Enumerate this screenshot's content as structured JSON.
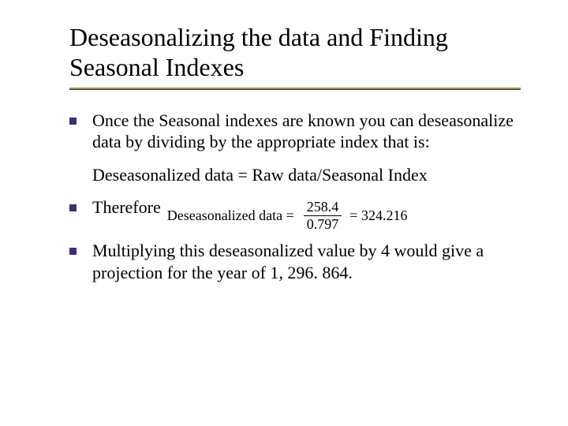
{
  "title": "Deseasonalizing the data and Finding Seasonal Indexes",
  "rule": {
    "top_color": "#9a9634",
    "bottom_color": "#40267a"
  },
  "bullet_color": "#3b2e7a",
  "font_family": "Times New Roman",
  "title_fontsize": 32,
  "body_fontsize": 22,
  "formula_fontsize": 18,
  "bullets": {
    "b1": "Once the Seasonal indexes are known you can deseasonalize data by dividing by the appropriate index that is:",
    "eq_line": "Deseasonalized data = Raw data/Seasonal Index",
    "b2_lead": "Therefore",
    "formula": {
      "lhs": "Deseasonalized data =",
      "numerator": "258.4",
      "denominator": "0.797",
      "rhs": "= 324.216"
    },
    "b3": "Multiplying this deseasonalized value by 4 would give a projection for the year of 1, 296. 864."
  }
}
